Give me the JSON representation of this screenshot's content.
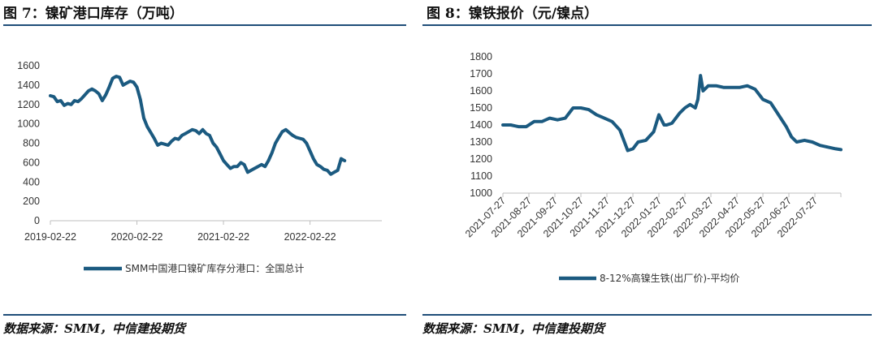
{
  "left_panel": {
    "title": "图 7：镍矿港口库存（万吨）",
    "source": "数据来源：SMM，中信建投期货"
  },
  "right_panel": {
    "title": "图 8：镍铁报价（元/镍点）",
    "source": "数据来源：SMM，中信建投期货"
  },
  "colors": {
    "series": "#1b5a80",
    "rule": "#1f4e79",
    "axis": "#bfbfbf"
  },
  "chart_data": [
    {
      "type": "line",
      "title": "镍矿港口库存（万吨）",
      "xlabel": "",
      "ylabel": "",
      "ylim": [
        0,
        1600
      ],
      "yticks": [
        0,
        200,
        400,
        600,
        800,
        1000,
        1200,
        1400,
        1600
      ],
      "xlim": [
        2019.12,
        2022.95
      ],
      "x_tick_labels": [
        "2019-02-22",
        "2020-02-22",
        "2021-02-22",
        "2022-02-22"
      ],
      "x_tick_positions": [
        2019.12,
        2020.12,
        2021.12,
        2022.12
      ],
      "legend": "SMM中国港口镍矿库存分港口：全国总计",
      "series": [
        {
          "name": "SMM中国港口镍矿库存分港口：全国总计",
          "x": [
            2019.12,
            2019.16,
            2019.2,
            2019.24,
            2019.28,
            2019.32,
            2019.36,
            2019.4,
            2019.44,
            2019.48,
            2019.52,
            2019.56,
            2019.6,
            2019.64,
            2019.68,
            2019.72,
            2019.76,
            2019.8,
            2019.84,
            2019.88,
            2019.92,
            2019.96,
            2020.0,
            2020.04,
            2020.08,
            2020.12,
            2020.16,
            2020.2,
            2020.24,
            2020.28,
            2020.32,
            2020.36,
            2020.4,
            2020.44,
            2020.48,
            2020.52,
            2020.56,
            2020.6,
            2020.64,
            2020.68,
            2020.72,
            2020.76,
            2020.8,
            2020.84,
            2020.88,
            2020.92,
            2020.96,
            2021.0,
            2021.04,
            2021.08,
            2021.12,
            2021.16,
            2021.2,
            2021.24,
            2021.28,
            2021.32,
            2021.36,
            2021.4,
            2021.44,
            2021.48,
            2021.52,
            2021.56,
            2021.6,
            2021.64,
            2021.68,
            2021.72,
            2021.76,
            2021.8,
            2021.84,
            2021.88,
            2021.92,
            2021.96,
            2022.0,
            2022.04,
            2022.08,
            2022.12,
            2022.16,
            2022.2,
            2022.24,
            2022.28,
            2022.32,
            2022.36,
            2022.4,
            2022.44,
            2022.48,
            2022.52
          ],
          "values": [
            1290,
            1280,
            1230,
            1240,
            1190,
            1210,
            1200,
            1240,
            1230,
            1260,
            1300,
            1340,
            1360,
            1340,
            1310,
            1240,
            1300,
            1380,
            1470,
            1490,
            1480,
            1400,
            1420,
            1440,
            1430,
            1380,
            1250,
            1060,
            970,
            910,
            850,
            780,
            800,
            790,
            780,
            820,
            850,
            840,
            880,
            900,
            920,
            940,
            930,
            900,
            940,
            900,
            880,
            800,
            760,
            690,
            620,
            580,
            540,
            560,
            560,
            600,
            580,
            500,
            520,
            540,
            560,
            580,
            560,
            620,
            700,
            800,
            860,
            920,
            940,
            910,
            880,
            860,
            850,
            840,
            800,
            720,
            640,
            580,
            560,
            530,
            520,
            480,
            500,
            520,
            640,
            620
          ]
        }
      ]
    },
    {
      "type": "line",
      "title": "镍铁报价（元/镍点）",
      "xlabel": "",
      "ylabel": "",
      "ylim": [
        1000,
        1800
      ],
      "yticks": [
        1000,
        1100,
        1200,
        1300,
        1400,
        1500,
        1600,
        1700,
        1800
      ],
      "x_tick_labels": [
        "2021-07-27",
        "2021-08-27",
        "2021-09-27",
        "2021-10-27",
        "2021-11-27",
        "2021-12-27",
        "2022-01-27",
        "2022-02-27",
        "2022-03-27",
        "2022-04-27",
        "2022-05-27",
        "2022-06-27",
        "2022-07-27"
      ],
      "legend": "8-12%高镍生铁(出厂价)-平均价",
      "series": [
        {
          "name": "8-12%高镍生铁(出厂价)-平均价",
          "x": [
            0,
            0.3,
            0.6,
            0.9,
            1.2,
            1.5,
            1.8,
            2.1,
            2.4,
            2.7,
            3.0,
            3.3,
            3.6,
            3.9,
            4.2,
            4.5,
            4.8,
            5.0,
            5.1,
            5.2,
            5.5,
            5.8,
            6.0,
            6.2,
            6.3,
            6.5,
            6.8,
            7.0,
            7.2,
            7.4,
            7.5,
            7.6,
            7.7,
            7.9,
            8.2,
            8.5,
            8.8,
            9.1,
            9.4,
            9.7,
            10.0,
            10.3,
            10.6,
            10.9,
            11.1,
            11.3,
            11.6,
            11.9,
            12.2,
            12.5,
            12.8,
            13.0
          ],
          "values": [
            1400,
            1400,
            1390,
            1390,
            1420,
            1420,
            1440,
            1430,
            1440,
            1500,
            1500,
            1490,
            1460,
            1440,
            1420,
            1370,
            1250,
            1260,
            1280,
            1300,
            1310,
            1360,
            1460,
            1400,
            1400,
            1410,
            1470,
            1500,
            1520,
            1500,
            1550,
            1690,
            1600,
            1630,
            1630,
            1620,
            1620,
            1620,
            1630,
            1610,
            1550,
            1530,
            1460,
            1390,
            1330,
            1300,
            1310,
            1300,
            1280,
            1270,
            1260,
            1255
          ]
        }
      ]
    }
  ]
}
